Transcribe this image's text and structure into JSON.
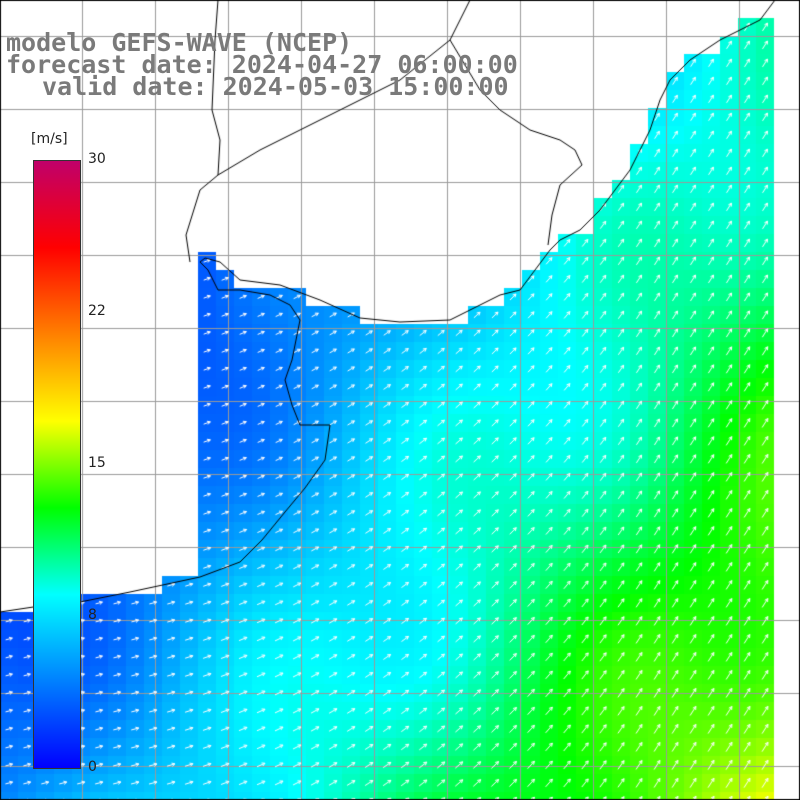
{
  "title": {
    "line1": "modelo GEFS-WAVE (NCEP)",
    "line2": "forecast date: 2024-04-27 06:00:00",
    "line3": "valid date: 2024-05-03 15:00:00"
  },
  "colorbar": {
    "unit": "[m/s]",
    "ticks": [
      {
        "value": 30,
        "label": "30"
      },
      {
        "value": 22,
        "label": "22"
      },
      {
        "value": 15,
        "label": "15"
      },
      {
        "value": 8,
        "label": "8"
      },
      {
        "value": 0,
        "label": "0"
      }
    ],
    "colors": [
      "#0000ff",
      "#0080ff",
      "#00ffff",
      "#00ff00",
      "#ffff00",
      "#ff8000",
      "#ff0000",
      "#c0006a"
    ]
  },
  "map": {
    "variable": "wind speed with direction arrows",
    "land_color": "#ffffff",
    "grid_color": "#9a9a9a",
    "coastline_color": "#000000",
    "arrow_color": "#ffffff"
  }
}
